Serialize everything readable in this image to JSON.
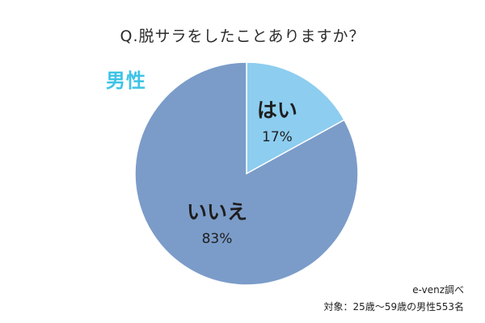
{
  "title": "Q.脱サラをしたことありますか？",
  "segment": "男性",
  "source": "e-venz調べ",
  "subject": "対象：25歳〜59歳の男性553名",
  "colors": {
    "segment_text": "#3ec3e6"
  },
  "chart_data": {
    "type": "pie",
    "title": "Q.脱サラをしたことありますか？",
    "start": "12 o'clock",
    "direction": "clockwise",
    "slices": [
      {
        "label": "はい",
        "value": 17,
        "display": "17%",
        "color": "#8dcdef"
      },
      {
        "label": "いいえ",
        "value": 83,
        "display": "83%",
        "color": "#7b9cc9"
      }
    ]
  }
}
